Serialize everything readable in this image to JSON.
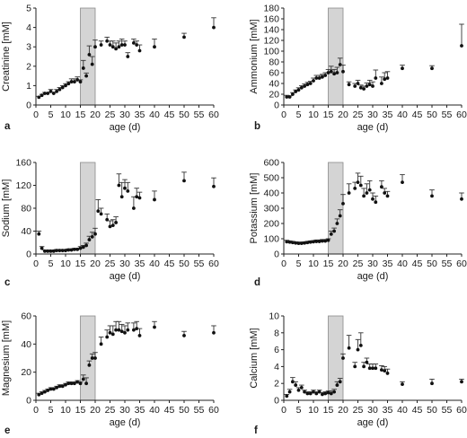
{
  "figure": {
    "xlabel": "age (d)",
    "shaded_region_x": [
      15,
      20
    ]
  },
  "chart_data": [
    {
      "type": "scatter",
      "letter": "a",
      "ylabel": "Creatinine [mM]",
      "xlabel": "age (d)",
      "xlim": [
        0,
        60
      ],
      "xticks": [
        0,
        5,
        10,
        15,
        20,
        25,
        30,
        35,
        40,
        45,
        50,
        55,
        60
      ],
      "ylim": [
        0,
        5
      ],
      "yticks": [
        0,
        1,
        2,
        3,
        4,
        5
      ],
      "shaded_region_x": [
        15,
        20
      ],
      "x": [
        1,
        2,
        3,
        4,
        5,
        6,
        7,
        8,
        9,
        10,
        11,
        12,
        13,
        14,
        15,
        16,
        17,
        18,
        19,
        20,
        22,
        24,
        25,
        26,
        27,
        28,
        29,
        30,
        31,
        33,
        34,
        35,
        40,
        50,
        60
      ],
      "y": [
        0.4,
        0.5,
        0.6,
        0.6,
        0.7,
        0.6,
        0.7,
        0.8,
        0.9,
        1.0,
        1.1,
        1.2,
        1.2,
        1.3,
        1.2,
        1.9,
        1.5,
        2.6,
        2.1,
        3.0,
        3.1,
        3.3,
        3.1,
        3.0,
        2.9,
        3.0,
        3.1,
        3.1,
        2.5,
        3.2,
        3.1,
        2.8,
        3.0,
        3.5,
        4.0
      ],
      "err": [
        0.05,
        0.05,
        0.05,
        0.05,
        0.1,
        0.05,
        0.1,
        0.1,
        0.1,
        0.1,
        0.1,
        0.15,
        0.15,
        0.15,
        0.1,
        0.4,
        0.15,
        0.45,
        0.4,
        0.35,
        0.2,
        0.2,
        0.2,
        0.3,
        0.3,
        0.3,
        0.3,
        0.2,
        0.2,
        0.2,
        0.2,
        0.3,
        0.4,
        0.2,
        0.5
      ]
    },
    {
      "type": "scatter",
      "letter": "b",
      "ylabel": "Ammonium [mM]",
      "xlabel": "age (d)",
      "xlim": [
        0,
        60
      ],
      "xticks": [
        0,
        5,
        10,
        15,
        20,
        25,
        30,
        35,
        40,
        45,
        50,
        55,
        60
      ],
      "ylim": [
        0,
        180
      ],
      "yticks": [
        0,
        20,
        40,
        60,
        80,
        100,
        120,
        140,
        160,
        180
      ],
      "shaded_region_x": [
        15,
        20
      ],
      "x": [
        1,
        2,
        3,
        4,
        5,
        6,
        7,
        8,
        9,
        10,
        11,
        12,
        13,
        14,
        15,
        16,
        17,
        18,
        19,
        20,
        22,
        24,
        25,
        26,
        27,
        28,
        29,
        30,
        31,
        33,
        34,
        35,
        40,
        50,
        60
      ],
      "y": [
        15,
        15,
        20,
        25,
        28,
        32,
        35,
        38,
        40,
        45,
        50,
        50,
        52,
        55,
        60,
        62,
        58,
        60,
        75,
        62,
        38,
        35,
        40,
        32,
        30,
        35,
        38,
        35,
        50,
        40,
        48,
        50,
        68,
        68,
        110
      ],
      "err": [
        3,
        2,
        3,
        3,
        4,
        4,
        4,
        4,
        4,
        5,
        5,
        5,
        5,
        5,
        6,
        10,
        8,
        10,
        12,
        12,
        5,
        5,
        6,
        5,
        5,
        6,
        8,
        8,
        15,
        12,
        12,
        12,
        6,
        5,
        40
      ]
    },
    {
      "type": "scatter",
      "letter": "c",
      "ylabel": "Sodium [mM]",
      "xlabel": "age (d)",
      "xlim": [
        0,
        60
      ],
      "xticks": [
        0,
        5,
        10,
        15,
        20,
        25,
        30,
        35,
        40,
        45,
        50,
        55,
        60
      ],
      "ylim": [
        0,
        160
      ],
      "yticks": [
        0,
        40,
        80,
        120,
        160
      ],
      "shaded_region_x": [
        15,
        20
      ],
      "x": [
        1,
        2,
        3,
        4,
        5,
        6,
        7,
        8,
        9,
        10,
        11,
        12,
        13,
        14,
        15,
        16,
        17,
        18,
        19,
        20,
        21,
        22,
        24,
        25,
        26,
        27,
        28,
        29,
        30,
        31,
        33,
        34,
        35,
        40,
        50,
        60
      ],
      "y": [
        35,
        10,
        5,
        5,
        5,
        5,
        6,
        6,
        6,
        6,
        7,
        7,
        8,
        8,
        10,
        12,
        15,
        25,
        30,
        35,
        75,
        70,
        60,
        48,
        50,
        55,
        120,
        100,
        115,
        110,
        80,
        100,
        98,
        95,
        128,
        118
      ],
      "err": [
        5,
        3,
        2,
        2,
        2,
        2,
        2,
        2,
        2,
        2,
        2,
        2,
        2,
        2,
        3,
        3,
        4,
        6,
        8,
        10,
        20,
        10,
        10,
        10,
        10,
        10,
        20,
        25,
        15,
        15,
        20,
        15,
        10,
        15,
        15,
        15
      ]
    },
    {
      "type": "scatter",
      "letter": "d",
      "ylabel": "Potassium [mM]",
      "xlabel": "age (d)",
      "xlim": [
        0,
        60
      ],
      "xticks": [
        0,
        5,
        10,
        15,
        20,
        25,
        30,
        35,
        40,
        45,
        50,
        55,
        60
      ],
      "ylim": [
        0,
        600
      ],
      "yticks": [
        0,
        100,
        200,
        300,
        400,
        500,
        600
      ],
      "shaded_region_x": [
        15,
        20
      ],
      "x": [
        1,
        2,
        3,
        4,
        5,
        6,
        7,
        8,
        9,
        10,
        11,
        12,
        13,
        14,
        15,
        16,
        17,
        18,
        19,
        20,
        22,
        24,
        25,
        26,
        27,
        28,
        29,
        30,
        31,
        33,
        34,
        35,
        40,
        50,
        60
      ],
      "y": [
        80,
        78,
        75,
        72,
        70,
        70,
        72,
        75,
        78,
        80,
        82,
        82,
        85,
        85,
        90,
        130,
        150,
        200,
        250,
        330,
        400,
        430,
        470,
        450,
        380,
        400,
        420,
        360,
        340,
        440,
        400,
        380,
        470,
        380,
        360
      ],
      "err": [
        10,
        8,
        8,
        8,
        8,
        8,
        8,
        8,
        8,
        8,
        10,
        10,
        10,
        10,
        10,
        20,
        20,
        30,
        40,
        60,
        60,
        40,
        60,
        60,
        50,
        60,
        60,
        40,
        40,
        40,
        30,
        30,
        50,
        40,
        40
      ]
    },
    {
      "type": "scatter",
      "letter": "e",
      "ylabel": "Magnesium [mM]",
      "xlabel": "age (d)",
      "xlim": [
        0,
        60
      ],
      "xticks": [
        0,
        5,
        10,
        15,
        20,
        25,
        30,
        35,
        40,
        45,
        50,
        55,
        60
      ],
      "ylim": [
        0,
        60
      ],
      "yticks": [
        0,
        20,
        40,
        60
      ],
      "shaded_region_x": [
        15,
        20
      ],
      "x": [
        1,
        2,
        3,
        4,
        5,
        6,
        7,
        8,
        9,
        10,
        11,
        12,
        13,
        14,
        15,
        16,
        17,
        18,
        19,
        20,
        22,
        24,
        25,
        26,
        27,
        28,
        29,
        30,
        31,
        33,
        34,
        35,
        40,
        50,
        60
      ],
      "y": [
        4,
        5,
        6,
        7,
        8,
        8,
        9,
        10,
        10,
        11,
        12,
        12,
        12,
        13,
        12,
        15,
        12,
        25,
        30,
        30,
        40,
        45,
        48,
        47,
        50,
        50,
        49,
        48,
        50,
        50,
        51,
        46,
        52,
        46,
        48
      ],
      "err": [
        1,
        1,
        1,
        1,
        1,
        1,
        1,
        1,
        1,
        1,
        1,
        1,
        1,
        1,
        1,
        3,
        4,
        3,
        3,
        4,
        5,
        5,
        5,
        6,
        6,
        6,
        5,
        5,
        5,
        5,
        5,
        5,
        4,
        3,
        5
      ]
    },
    {
      "type": "scatter",
      "letter": "f",
      "ylabel": "Calcium [mM]",
      "xlabel": "age (d)",
      "xlim": [
        0,
        60
      ],
      "xticks": [
        0,
        5,
        10,
        15,
        20,
        25,
        30,
        35,
        40,
        45,
        50,
        55,
        60
      ],
      "ylim": [
        0,
        10
      ],
      "yticks": [
        0,
        2,
        4,
        6,
        8,
        10
      ],
      "shaded_region_x": [
        15,
        20
      ],
      "x": [
        1,
        2,
        3,
        4,
        5,
        6,
        7,
        8,
        9,
        10,
        11,
        12,
        13,
        14,
        15,
        16,
        17,
        18,
        19,
        20,
        22,
        24,
        25,
        26,
        27,
        28,
        29,
        30,
        31,
        33,
        34,
        35,
        40,
        50,
        60
      ],
      "y": [
        0.5,
        1.0,
        2.2,
        1.8,
        1.2,
        1.5,
        1.0,
        0.8,
        0.8,
        1.0,
        0.8,
        1.0,
        0.7,
        0.8,
        0.9,
        0.8,
        1.0,
        1.8,
        2.2,
        5.0,
        6.2,
        4.0,
        6.0,
        6.5,
        4.0,
        4.5,
        3.8,
        3.8,
        3.8,
        3.6,
        3.5,
        3.2,
        1.9,
        2.0,
        2.2
      ],
      "err": [
        0.2,
        0.3,
        0.5,
        0.4,
        0.3,
        0.3,
        0.2,
        0.2,
        0.2,
        0.2,
        0.2,
        0.2,
        0.2,
        0.2,
        0.2,
        0.3,
        0.3,
        0.4,
        0.4,
        0.5,
        1.5,
        0.5,
        1.2,
        1.5,
        0.5,
        0.5,
        0.5,
        0.5,
        0.5,
        0.5,
        0.5,
        0.5,
        0.3,
        0.5,
        0.3
      ]
    }
  ]
}
